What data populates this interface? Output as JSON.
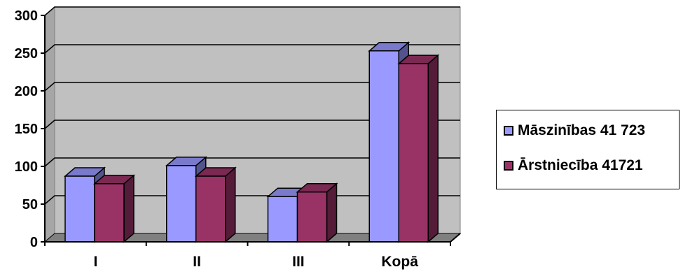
{
  "chart_data": {
    "type": "bar",
    "categories": [
      "I",
      "II",
      "III",
      "Kopā"
    ],
    "series": [
      {
        "name": "Māszinības 41 723",
        "values": [
          87,
          101,
          60,
          253
        ],
        "color": "#9999ff"
      },
      {
        "name": "Ārstniecība 41721",
        "values": [
          77,
          87,
          66,
          236
        ],
        "color": "#993366"
      }
    ],
    "title": "",
    "xlabel": "",
    "ylabel": "",
    "ylim": [
      0,
      300
    ],
    "yticks": [
      0,
      50,
      100,
      150,
      200,
      250,
      300
    ],
    "grid": true,
    "legend": "right",
    "colors": {
      "plot_bg": "#c0c0c0",
      "floor": "#808080",
      "gridline": "#000000"
    }
  }
}
